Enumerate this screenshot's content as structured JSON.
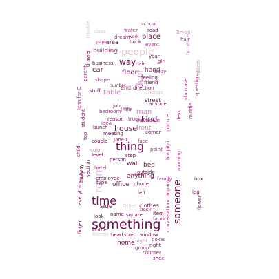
{
  "colors": {
    "dark": "#6d0f4f",
    "mid": "#9c2d7a",
    "light": "#c98ab8",
    "pale": "#dfc4d8",
    "grey": "#b9bcc8"
  },
  "words": [
    {
      "text": "something",
      "color": "#6d0f4f"
    },
    {
      "text": "thing",
      "color": "#6d0f4f"
    },
    {
      "text": "time",
      "color": "#6d0f4f"
    },
    {
      "text": "someone",
      "color": "#6d0f4f"
    },
    {
      "text": "people",
      "color": "#dfc4d8"
    },
    {
      "text": "room",
      "color": "#dfc4d8"
    },
    {
      "text": "way",
      "color": "#6d0f4f"
    },
    {
      "text": "house",
      "color": "#6d0f4f"
    },
    {
      "text": "kind",
      "color": "#6d0f4f"
    },
    {
      "text": "floor",
      "color": "#6d0f4f"
    },
    {
      "text": "table",
      "color": "#c98ab8"
    },
    {
      "text": "door",
      "color": "#c98ab8"
    },
    {
      "text": "car",
      "color": "#6d0f4f"
    },
    {
      "text": "end",
      "color": "#9c2d7a"
    },
    {
      "text": "hand",
      "color": "#9c2d7a"
    },
    {
      "text": "man",
      "color": "#c98ab8"
    },
    {
      "text": "wall",
      "color": "#6d0f4f"
    },
    {
      "text": "bed",
      "color": "#6d0f4f"
    },
    {
      "text": "home",
      "color": "#6d0f4f"
    },
    {
      "text": "side",
      "color": "#6d0f4f"
    },
    {
      "text": "anything",
      "color": "#6d0f4f"
    },
    {
      "text": "office",
      "color": "#6d0f4f"
    },
    {
      "text": "clothes",
      "color": "#6d0f4f"
    },
    {
      "text": "building",
      "color": "#9c2d7a"
    },
    {
      "text": "place",
      "color": "#6d0f4f"
    },
    {
      "text": "front",
      "color": "#c98ab8"
    },
    {
      "text": "street",
      "color": "#6d0f4f"
    },
    {
      "text": "area",
      "color": "#6d0f4f"
    },
    {
      "text": "book",
      "color": "#6d0f4f"
    },
    {
      "text": "event",
      "color": "#9c2d7a"
    },
    {
      "text": "water",
      "color": "#9c2d7a"
    },
    {
      "text": "road",
      "color": "#6d0f4f"
    },
    {
      "text": "school",
      "color": "#9c2d7a"
    },
    {
      "text": "Bryan",
      "color": "#c98ab8"
    },
    {
      "text": "hair",
      "color": "#9c2d7a"
    },
    {
      "text": "dream",
      "color": "#9c2d7a"
    },
    {
      "text": "work",
      "color": "#9c2d7a"
    },
    {
      "text": "paper",
      "color": "#9c2d7a"
    },
    {
      "text": "year",
      "color": "#6d0f4f"
    },
    {
      "text": "chair",
      "color": "#6d0f4f"
    },
    {
      "text": "girl",
      "color": "#9c2d7a"
    },
    {
      "text": "business",
      "color": "#6d0f4f"
    },
    {
      "text": "body",
      "color": "#9c2d7a"
    },
    {
      "text": "feeling",
      "color": "#6d0f4f"
    },
    {
      "text": "friend",
      "color": "#6d0f4f"
    },
    {
      "text": "shape",
      "color": "#9c2d7a"
    },
    {
      "text": "number",
      "color": "#6d0f4f"
    },
    {
      "text": "direction",
      "color": "#6d0f4f"
    },
    {
      "text": "stuff",
      "color": "#6d0f4f"
    },
    {
      "text": "job",
      "color": "#6d0f4f"
    },
    {
      "text": "bedroom",
      "color": "#9c2d7a"
    },
    {
      "text": "file",
      "color": "#6d0f4f"
    },
    {
      "text": "bathroom",
      "color": "#9c2d7a"
    },
    {
      "text": "reason",
      "color": "#6d0f4f"
    },
    {
      "text": "idea",
      "color": "#9c2d7a"
    },
    {
      "text": "truck",
      "color": "#9c2d7a"
    },
    {
      "text": "bunch",
      "color": "#6d0f4f"
    },
    {
      "text": "meeting",
      "color": "#6d0f4f"
    },
    {
      "text": "corner",
      "color": "#6d0f4f"
    },
    {
      "text": "couple",
      "color": "#6d0f4f"
    },
    {
      "text": "face",
      "color": "#9c2d7a"
    },
    {
      "text": "Jane C",
      "color": "#9c2d7a"
    },
    {
      "text": "point",
      "color": "#9c2d7a"
    },
    {
      "text": "step",
      "color": "#6d0f4f"
    },
    {
      "text": "person",
      "color": "#6d0f4f"
    },
    {
      "text": "level",
      "color": "#6d0f4f"
    },
    {
      "text": "type",
      "color": "#6d0f4f"
    },
    {
      "text": "children",
      "color": "#9c2d7a"
    },
    {
      "text": "employee",
      "color": "#6d0f4f"
    },
    {
      "text": "hotel",
      "color": "#9c2d7a"
    },
    {
      "text": "outside",
      "color": "#6d0f4f"
    },
    {
      "text": "family",
      "color": "#9c2d7a"
    },
    {
      "text": "phone",
      "color": "#9c2d7a"
    },
    {
      "text": "left",
      "color": "#6d0f4f"
    },
    {
      "text": "look",
      "color": "#6d0f4f"
    },
    {
      "text": "name",
      "color": "#6d0f4f"
    },
    {
      "text": "square",
      "color": "#6d0f4f"
    },
    {
      "text": "back",
      "color": "#9c2d7a"
    },
    {
      "text": "item",
      "color": "#6d0f4f"
    },
    {
      "text": "fabric",
      "color": "#9c2d7a"
    },
    {
      "text": "Mother",
      "color": "#6d0f4f"
    },
    {
      "text": "head",
      "color": "#6d0f4f"
    },
    {
      "text": "size",
      "color": "#6d0f4f"
    },
    {
      "text": "window",
      "color": "#6d0f4f"
    },
    {
      "text": "boxes",
      "color": "#9c2d7a"
    },
    {
      "text": "group",
      "color": "#9c2d7a"
    },
    {
      "text": "right",
      "color": "#6d0f4f"
    },
    {
      "text": "counter",
      "color": "#9c2d7a"
    },
    {
      "text": "shoe",
      "color": "#9c2d7a"
    },
    {
      "text": "night",
      "color": "#c98ab8"
    },
    {
      "text": "hospital",
      "color": "#9c2d7a"
    },
    {
      "text": "picture",
      "color": "#9c2d7a"
    },
    {
      "text": "conversation",
      "color": "#9c2d7a"
    },
    {
      "text": "company",
      "color": "#9c2d7a"
    },
    {
      "text": "desk",
      "color": "#9c2d7a"
    },
    {
      "text": "morning",
      "color": "#9c2d7a"
    },
    {
      "text": "middle",
      "color": "#9c2d7a"
    },
    {
      "text": "question",
      "color": "#9c2d7a"
    },
    {
      "text": "problem",
      "color": "#c98ab8"
    },
    {
      "text": "staircase",
      "color": "#9c2d7a"
    },
    {
      "text": "furniture",
      "color": "#c98ab8"
    },
    {
      "text": "box",
      "color": "#6d0f4f"
    },
    {
      "text": "leg",
      "color": "#6d0f4f"
    },
    {
      "text": "flower",
      "color": "#9c2d7a"
    },
    {
      "text": "finger",
      "color": "#6d0f4f"
    },
    {
      "text": "everything",
      "color": "#6d0f4f"
    },
    {
      "text": "hallway",
      "color": "#6d0f4f"
    },
    {
      "text": "section",
      "color": "#6d0f4f"
    },
    {
      "text": "child",
      "color": "#6d0f4f"
    },
    {
      "text": "top",
      "color": "#6d0f4f"
    },
    {
      "text": "student",
      "color": "#6d0f4f"
    },
    {
      "text": "Jennifer C",
      "color": "#9c2d7a"
    },
    {
      "text": "drawer",
      "color": "#6d0f4f"
    },
    {
      "text": "parent",
      "color": "#9c2d7a"
    },
    {
      "text": "bag",
      "color": "#9c2d7a"
    },
    {
      "text": "color",
      "color": "#c98ab8"
    },
    {
      "text": "change",
      "color": "#dfc4d8"
    },
    {
      "text": "anyone",
      "color": "#6d0f4f"
    },
    {
      "text": "Other",
      "color": "#dfc4d8"
    },
    {
      "text": "Barren",
      "color": "#dfc4d8"
    },
    {
      "text": "trouble",
      "color": "#dfc4d8"
    },
    {
      "text": "class",
      "color": "#dfc4d8"
    },
    {
      "text": "pile",
      "color": "#c98ab8"
    }
  ]
}
